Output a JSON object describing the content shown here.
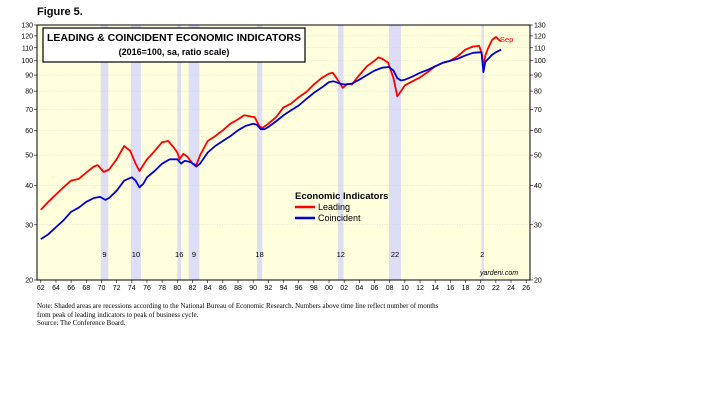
{
  "figure_label": "Figure 5.",
  "notes": [
    "Note: Shaded areas are recessions according to the National Bureau of Economic Research. Numbers above time line reflect number of months",
    "from peak of leading indicators to peak of business cycle.",
    "Source: The Conference Board."
  ],
  "colors": {
    "plot_bg": "#FFFFDD",
    "recession": "#DDDDF5",
    "leading": "#FF0000",
    "coincident": "#0000DD"
  },
  "chart_data": {
    "type": "line",
    "title": "LEADING & COINCIDENT ECONOMIC INDICATORS",
    "subtitle": "(2016=100, sa, ratio scale)",
    "y_scale": "log",
    "ylim": [
      20,
      130
    ],
    "xlim": [
      1961.5,
      2026.5
    ],
    "y_ticks": [
      20,
      30,
      40,
      50,
      60,
      70,
      80,
      90,
      100,
      110,
      120,
      130
    ],
    "x_tick_labels": [
      "62",
      "64",
      "66",
      "68",
      "70",
      "72",
      "74",
      "76",
      "78",
      "80",
      "82",
      "84",
      "86",
      "88",
      "90",
      "92",
      "94",
      "96",
      "98",
      "00",
      "02",
      "04",
      "06",
      "08",
      "10",
      "12",
      "14",
      "16",
      "18",
      "20",
      "22",
      "24",
      "26"
    ],
    "grid": true,
    "legend": {
      "title": "Economic Indicators",
      "placement": "center",
      "entries": [
        "Leading",
        "Coincident"
      ]
    },
    "annotation": "Sep",
    "source_label": "yardeni.com",
    "recessions": [
      {
        "start": 1969.9,
        "end": 1970.9,
        "lead_months": "9"
      },
      {
        "start": 1973.9,
        "end": 1975.2,
        "lead_months": "10"
      },
      {
        "start": 1980.0,
        "end": 1980.5,
        "lead_months": "16"
      },
      {
        "start": 1981.5,
        "end": 1982.9,
        "lead_months": "9"
      },
      {
        "start": 1990.5,
        "end": 1991.2,
        "lead_months": "18"
      },
      {
        "start": 2001.2,
        "end": 2001.9,
        "lead_months": "12"
      },
      {
        "start": 2007.9,
        "end": 2009.5,
        "lead_months": "22"
      },
      {
        "start": 2020.1,
        "end": 2020.3,
        "lead_months": "2"
      }
    ],
    "series": [
      {
        "name": "Leading",
        "color": "#FF0000",
        "points": [
          [
            1959.0,
            30.0
          ],
          [
            1960.0,
            30.5
          ],
          [
            1961.0,
            31.2
          ],
          [
            1962.0,
            33.5
          ],
          [
            1963.0,
            35.5
          ],
          [
            1964.0,
            37.5
          ],
          [
            1965.0,
            39.5
          ],
          [
            1966.0,
            41.5
          ],
          [
            1967.0,
            42.0
          ],
          [
            1968.0,
            44.0
          ],
          [
            1969.0,
            46.0
          ],
          [
            1969.5,
            46.5
          ],
          [
            1970.3,
            44.2
          ],
          [
            1971.0,
            45.0
          ],
          [
            1972.0,
            48.5
          ],
          [
            1973.0,
            53.5
          ],
          [
            1973.8,
            51.5
          ],
          [
            1974.5,
            47.0
          ],
          [
            1975.0,
            44.5
          ],
          [
            1975.5,
            46.5
          ],
          [
            1976.0,
            48.5
          ],
          [
            1977.0,
            51.5
          ],
          [
            1978.0,
            55.0
          ],
          [
            1978.8,
            55.5
          ],
          [
            1979.5,
            53.0
          ],
          [
            1980.0,
            51.0
          ],
          [
            1980.3,
            48.5
          ],
          [
            1980.8,
            50.5
          ],
          [
            1981.3,
            49.5
          ],
          [
            1982.0,
            47.0
          ],
          [
            1982.5,
            46.5
          ],
          [
            1983.0,
            50.0
          ],
          [
            1984.0,
            55.5
          ],
          [
            1985.0,
            57.5
          ],
          [
            1986.0,
            60.0
          ],
          [
            1987.0,
            63.0
          ],
          [
            1988.0,
            65.0
          ],
          [
            1988.8,
            67.0
          ],
          [
            1989.5,
            66.5
          ],
          [
            1990.2,
            66.0
          ],
          [
            1990.8,
            62.0
          ],
          [
            1991.2,
            61.0
          ],
          [
            1992.0,
            63.0
          ],
          [
            1993.0,
            66.0
          ],
          [
            1994.0,
            71.0
          ],
          [
            1995.0,
            73.0
          ],
          [
            1996.0,
            76.5
          ],
          [
            1997.0,
            79.5
          ],
          [
            1998.0,
            84.0
          ],
          [
            1999.0,
            88.0
          ],
          [
            2000.0,
            91.0
          ],
          [
            2000.5,
            91.5
          ],
          [
            2001.0,
            88.0
          ],
          [
            2001.8,
            82.0
          ],
          [
            2002.5,
            84.5
          ],
          [
            2003.0,
            84.0
          ],
          [
            2004.0,
            90.0
          ],
          [
            2005.0,
            96.0
          ],
          [
            2006.0,
            100.0
          ],
          [
            2006.5,
            102.5
          ],
          [
            2007.0,
            101.5
          ],
          [
            2007.8,
            98.5
          ],
          [
            2008.5,
            88.0
          ],
          [
            2009.0,
            77.0
          ],
          [
            2009.5,
            80.0
          ],
          [
            2010.0,
            83.5
          ],
          [
            2011.0,
            86.0
          ],
          [
            2012.0,
            88.5
          ],
          [
            2013.0,
            92.0
          ],
          [
            2014.0,
            96.0
          ],
          [
            2015.0,
            98.5
          ],
          [
            2016.0,
            100.0
          ],
          [
            2017.0,
            103.5
          ],
          [
            2018.0,
            108.5
          ],
          [
            2019.0,
            111.0
          ],
          [
            2019.8,
            111.5
          ],
          [
            2020.2,
            104.0
          ],
          [
            2020.35,
            94.0
          ],
          [
            2020.6,
            104.0
          ],
          [
            2021.0,
            110.0
          ],
          [
            2021.5,
            116.5
          ],
          [
            2022.0,
            119.0
          ],
          [
            2022.5,
            116.0
          ],
          [
            2022.7,
            115.5
          ]
        ]
      },
      {
        "name": "Coincident",
        "color": "#0000DD",
        "points": [
          [
            1959.0,
            25.0
          ],
          [
            1960.0,
            25.8
          ],
          [
            1961.0,
            26.0
          ],
          [
            1962.0,
            27.0
          ],
          [
            1963.0,
            28.0
          ],
          [
            1964.0,
            29.5
          ],
          [
            1965.0,
            31.0
          ],
          [
            1966.0,
            33.0
          ],
          [
            1967.0,
            34.0
          ],
          [
            1968.0,
            35.5
          ],
          [
            1969.0,
            36.5
          ],
          [
            1969.8,
            36.8
          ],
          [
            1970.5,
            36.0
          ],
          [
            1971.0,
            36.5
          ],
          [
            1972.0,
            38.5
          ],
          [
            1973.0,
            41.5
          ],
          [
            1974.0,
            42.5
          ],
          [
            1974.5,
            41.5
          ],
          [
            1975.0,
            39.5
          ],
          [
            1975.5,
            40.5
          ],
          [
            1976.0,
            42.5
          ],
          [
            1977.0,
            44.5
          ],
          [
            1978.0,
            47.0
          ],
          [
            1979.0,
            48.5
          ],
          [
            1980.0,
            48.5
          ],
          [
            1980.5,
            47.0
          ],
          [
            1981.0,
            48.0
          ],
          [
            1981.8,
            47.5
          ],
          [
            1982.5,
            46.0
          ],
          [
            1983.0,
            47.0
          ],
          [
            1984.0,
            51.0
          ],
          [
            1985.0,
            53.5
          ],
          [
            1986.0,
            55.5
          ],
          [
            1987.0,
            57.5
          ],
          [
            1988.0,
            60.0
          ],
          [
            1989.0,
            62.0
          ],
          [
            1990.0,
            63.0
          ],
          [
            1990.5,
            62.5
          ],
          [
            1991.0,
            60.5
          ],
          [
            1991.5,
            60.5
          ],
          [
            1992.0,
            61.5
          ],
          [
            1993.0,
            64.0
          ],
          [
            1994.0,
            67.0
          ],
          [
            1995.0,
            69.5
          ],
          [
            1996.0,
            72.0
          ],
          [
            1997.0,
            75.5
          ],
          [
            1998.0,
            79.0
          ],
          [
            1999.0,
            82.0
          ],
          [
            2000.0,
            85.5
          ],
          [
            2000.6,
            86.0
          ],
          [
            2001.5,
            84.5
          ],
          [
            2002.0,
            84.0
          ],
          [
            2003.0,
            84.5
          ],
          [
            2004.0,
            87.0
          ],
          [
            2005.0,
            90.0
          ],
          [
            2006.0,
            93.0
          ],
          [
            2007.0,
            95.0
          ],
          [
            2007.9,
            95.5
          ],
          [
            2008.5,
            93.0
          ],
          [
            2009.0,
            88.0
          ],
          [
            2009.5,
            86.5
          ],
          [
            2010.0,
            87.0
          ],
          [
            2011.0,
            89.0
          ],
          [
            2012.0,
            91.5
          ],
          [
            2013.0,
            93.5
          ],
          [
            2014.0,
            96.0
          ],
          [
            2015.0,
            98.5
          ],
          [
            2016.0,
            100.0
          ],
          [
            2017.0,
            101.5
          ],
          [
            2018.0,
            104.0
          ],
          [
            2019.0,
            106.0
          ],
          [
            2020.1,
            106.5
          ],
          [
            2020.35,
            92.0
          ],
          [
            2020.6,
            99.0
          ],
          [
            2021.0,
            101.5
          ],
          [
            2021.5,
            104.5
          ],
          [
            2022.0,
            106.5
          ],
          [
            2022.7,
            108.5
          ]
        ]
      }
    ]
  }
}
